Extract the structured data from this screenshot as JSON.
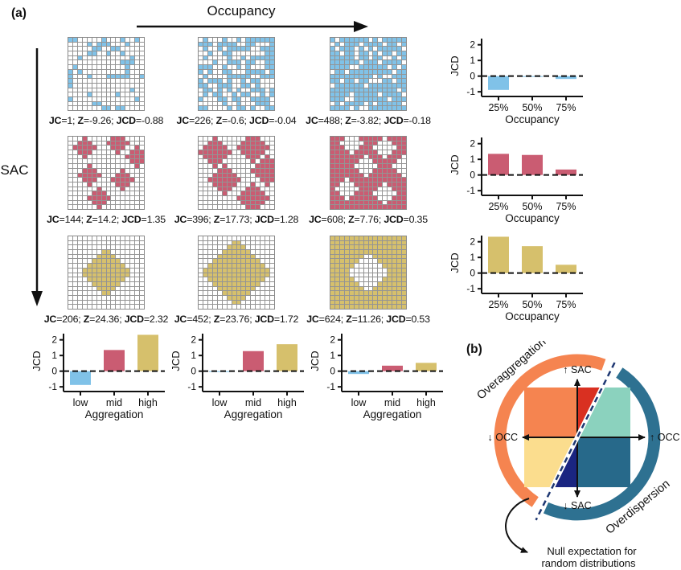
{
  "colors": {
    "blue": "#80C2E8",
    "red": "#CA5C72",
    "yellow": "#D6C06C"
  },
  "panel_a": {
    "label": "(a)",
    "occupancy_arrow_label": "Occupancy",
    "sac_arrow_label": "SAC",
    "stat_labels": {
      "jc": "JC",
      "z": "Z",
      "jcd": "JCD"
    },
    "matrix": [
      {
        "color_key": "blue",
        "cells": [
          {
            "stats": {
              "jc": "1",
              "z": "-9.26",
              "jcd": "-0.88"
            },
            "pattern": {
              "type": "scatter",
              "fill": 0.25,
              "seed": 7
            }
          },
          {
            "stats": {
              "jc": "226",
              "z": "-0.6",
              "jcd": "-0.04"
            },
            "pattern": {
              "type": "scatter",
              "fill": 0.5,
              "seed": 1
            }
          },
          {
            "stats": {
              "jc": "488",
              "z": "-3.82",
              "jcd": "-0.18"
            },
            "pattern": {
              "type": "scatter",
              "fill": 0.75,
              "seed": 5
            }
          }
        ]
      },
      {
        "color_key": "red",
        "cells": [
          {
            "stats": {
              "jc": "144",
              "z": "14.2",
              "jcd": "1.35"
            },
            "pattern": {
              "type": "blobs",
              "r": 2,
              "centers": [
                [
                  3,
                  2
                ],
                [
                  10,
                  1
                ],
                [
                  14,
                  4
                ],
                [
                  4,
                  8
                ],
                [
                  11,
                  9
                ],
                [
                  6,
                  13
                ]
              ]
            }
          },
          {
            "stats": {
              "jc": "396",
              "z": "17.73",
              "jcd": "1.28"
            },
            "pattern": {
              "type": "blobs",
              "r": 3,
              "centers": [
                [
                  3,
                  3
                ],
                [
                  11,
                  2
                ],
                [
                  14,
                  7
                ],
                [
                  5,
                  9
                ],
                [
                  11,
                  13
                ]
              ]
            }
          },
          {
            "stats": {
              "jc": "608",
              "z": "7.76",
              "jcd": "0.35"
            },
            "pattern": {
              "type": "holes",
              "r": 2,
              "centers": [
                [
                  4,
                  1
                ],
                [
                  11,
                  2
                ],
                [
                  15,
                  6
                ],
                [
                  7,
                  6
                ],
                [
                  3,
                  11
                ],
                [
                  11,
                  12
                ]
              ]
            }
          }
        ]
      },
      {
        "color_key": "yellow",
        "cells": [
          {
            "stats": {
              "jc": "206",
              "z": "24.36",
              "jcd": "2.32"
            },
            "pattern": {
              "type": "diamond",
              "r": 5
            }
          },
          {
            "stats": {
              "jc": "452",
              "z": "23.76",
              "jcd": "1.72"
            },
            "pattern": {
              "type": "diamond",
              "r": 7.5
            }
          },
          {
            "stats": {
              "jc": "624",
              "z": "11.26",
              "jcd": "0.53"
            },
            "pattern": {
              "type": "diamond_hole",
              "r": 4.5
            }
          }
        ]
      }
    ]
  },
  "chart_data": [
    {
      "id": "occupancy-low-aggregation",
      "type": "bar",
      "categories": [
        "25%",
        "50%",
        "75%"
      ],
      "values": [
        -0.88,
        -0.04,
        -0.18
      ],
      "bar_colors": [
        "blue"
      ],
      "xlabel": "Occupancy",
      "ylabel": "JCD",
      "yticks": [
        -1,
        0,
        1,
        2
      ],
      "ylim": [
        -1.3,
        2.6
      ],
      "zero_line": "dashed",
      "grid": false,
      "legend": "none"
    },
    {
      "id": "occupancy-mid-aggregation",
      "type": "bar",
      "categories": [
        "25%",
        "50%",
        "75%"
      ],
      "values": [
        1.35,
        1.28,
        0.35
      ],
      "bar_colors": [
        "red"
      ],
      "xlabel": "Occupancy",
      "ylabel": "JCD",
      "yticks": [
        -1,
        0,
        1,
        2
      ],
      "ylim": [
        -1.3,
        2.6
      ],
      "zero_line": "dashed",
      "grid": false,
      "legend": "none"
    },
    {
      "id": "occupancy-high-aggregation",
      "type": "bar",
      "categories": [
        "25%",
        "50%",
        "75%"
      ],
      "values": [
        2.32,
        1.72,
        0.53
      ],
      "bar_colors": [
        "yellow"
      ],
      "xlabel": "Occupancy",
      "ylabel": "JCD",
      "yticks": [
        -1,
        0,
        1,
        2
      ],
      "ylim": [
        -1.3,
        2.6
      ],
      "zero_line": "dashed",
      "grid": false,
      "legend": "none"
    },
    {
      "id": "aggregation-25pct-occupancy",
      "type": "bar",
      "categories": [
        "low",
        "mid",
        "high"
      ],
      "values": [
        -0.88,
        1.35,
        2.32
      ],
      "bar_colors": [
        "blue",
        "red",
        "yellow"
      ],
      "xlabel": "Aggregation",
      "ylabel": "JCD",
      "yticks": [
        -1,
        0,
        1,
        2
      ],
      "ylim": [
        -1.3,
        2.6
      ],
      "zero_line": "dashed",
      "grid": false,
      "legend": "none"
    },
    {
      "id": "aggregation-50pct-occupancy",
      "type": "bar",
      "categories": [
        "low",
        "mid",
        "high"
      ],
      "values": [
        -0.04,
        1.28,
        1.72
      ],
      "bar_colors": [
        "blue",
        "red",
        "yellow"
      ],
      "xlabel": "Aggregation",
      "ylabel": "JCD",
      "yticks": [
        -1,
        0,
        1,
        2
      ],
      "ylim": [
        -1.3,
        2.6
      ],
      "zero_line": "dashed",
      "grid": false,
      "legend": "none"
    },
    {
      "id": "aggregation-75pct-occupancy",
      "type": "bar",
      "categories": [
        "low",
        "mid",
        "high"
      ],
      "values": [
        -0.18,
        0.35,
        0.53
      ],
      "bar_colors": [
        "blue",
        "red",
        "yellow"
      ],
      "xlabel": "Aggregation",
      "ylabel": "JCD",
      "yticks": [
        -1,
        0,
        1,
        2
      ],
      "ylim": [
        -1.3,
        2.6
      ],
      "zero_line": "dashed",
      "grid": false,
      "legend": "none"
    }
  ],
  "panel_b": {
    "label": "(b)",
    "arc_labels": {
      "top_left": "Overaggregation",
      "bottom_right": "Overdispersion"
    },
    "axis_labels": {
      "up": "↑ SAC",
      "down": "↓ SAC",
      "left": "↓ OCC",
      "right": "↑ OCC"
    },
    "annotation": {
      "line1": "Null expectation for",
      "line2": "random distributions"
    },
    "colors": {
      "arc_orange": "#F58450",
      "arc_blue": "#2E7191",
      "quad_top_left": "#F58450",
      "wedge_red": "#D93021",
      "wedge_mint": "#8BD2BE",
      "quad_bottom_left": "#FBDD8E",
      "wedge_navy": "#1A2581",
      "quad_bottom_right": "#27698A",
      "dashed_line": "#1F3873"
    }
  }
}
